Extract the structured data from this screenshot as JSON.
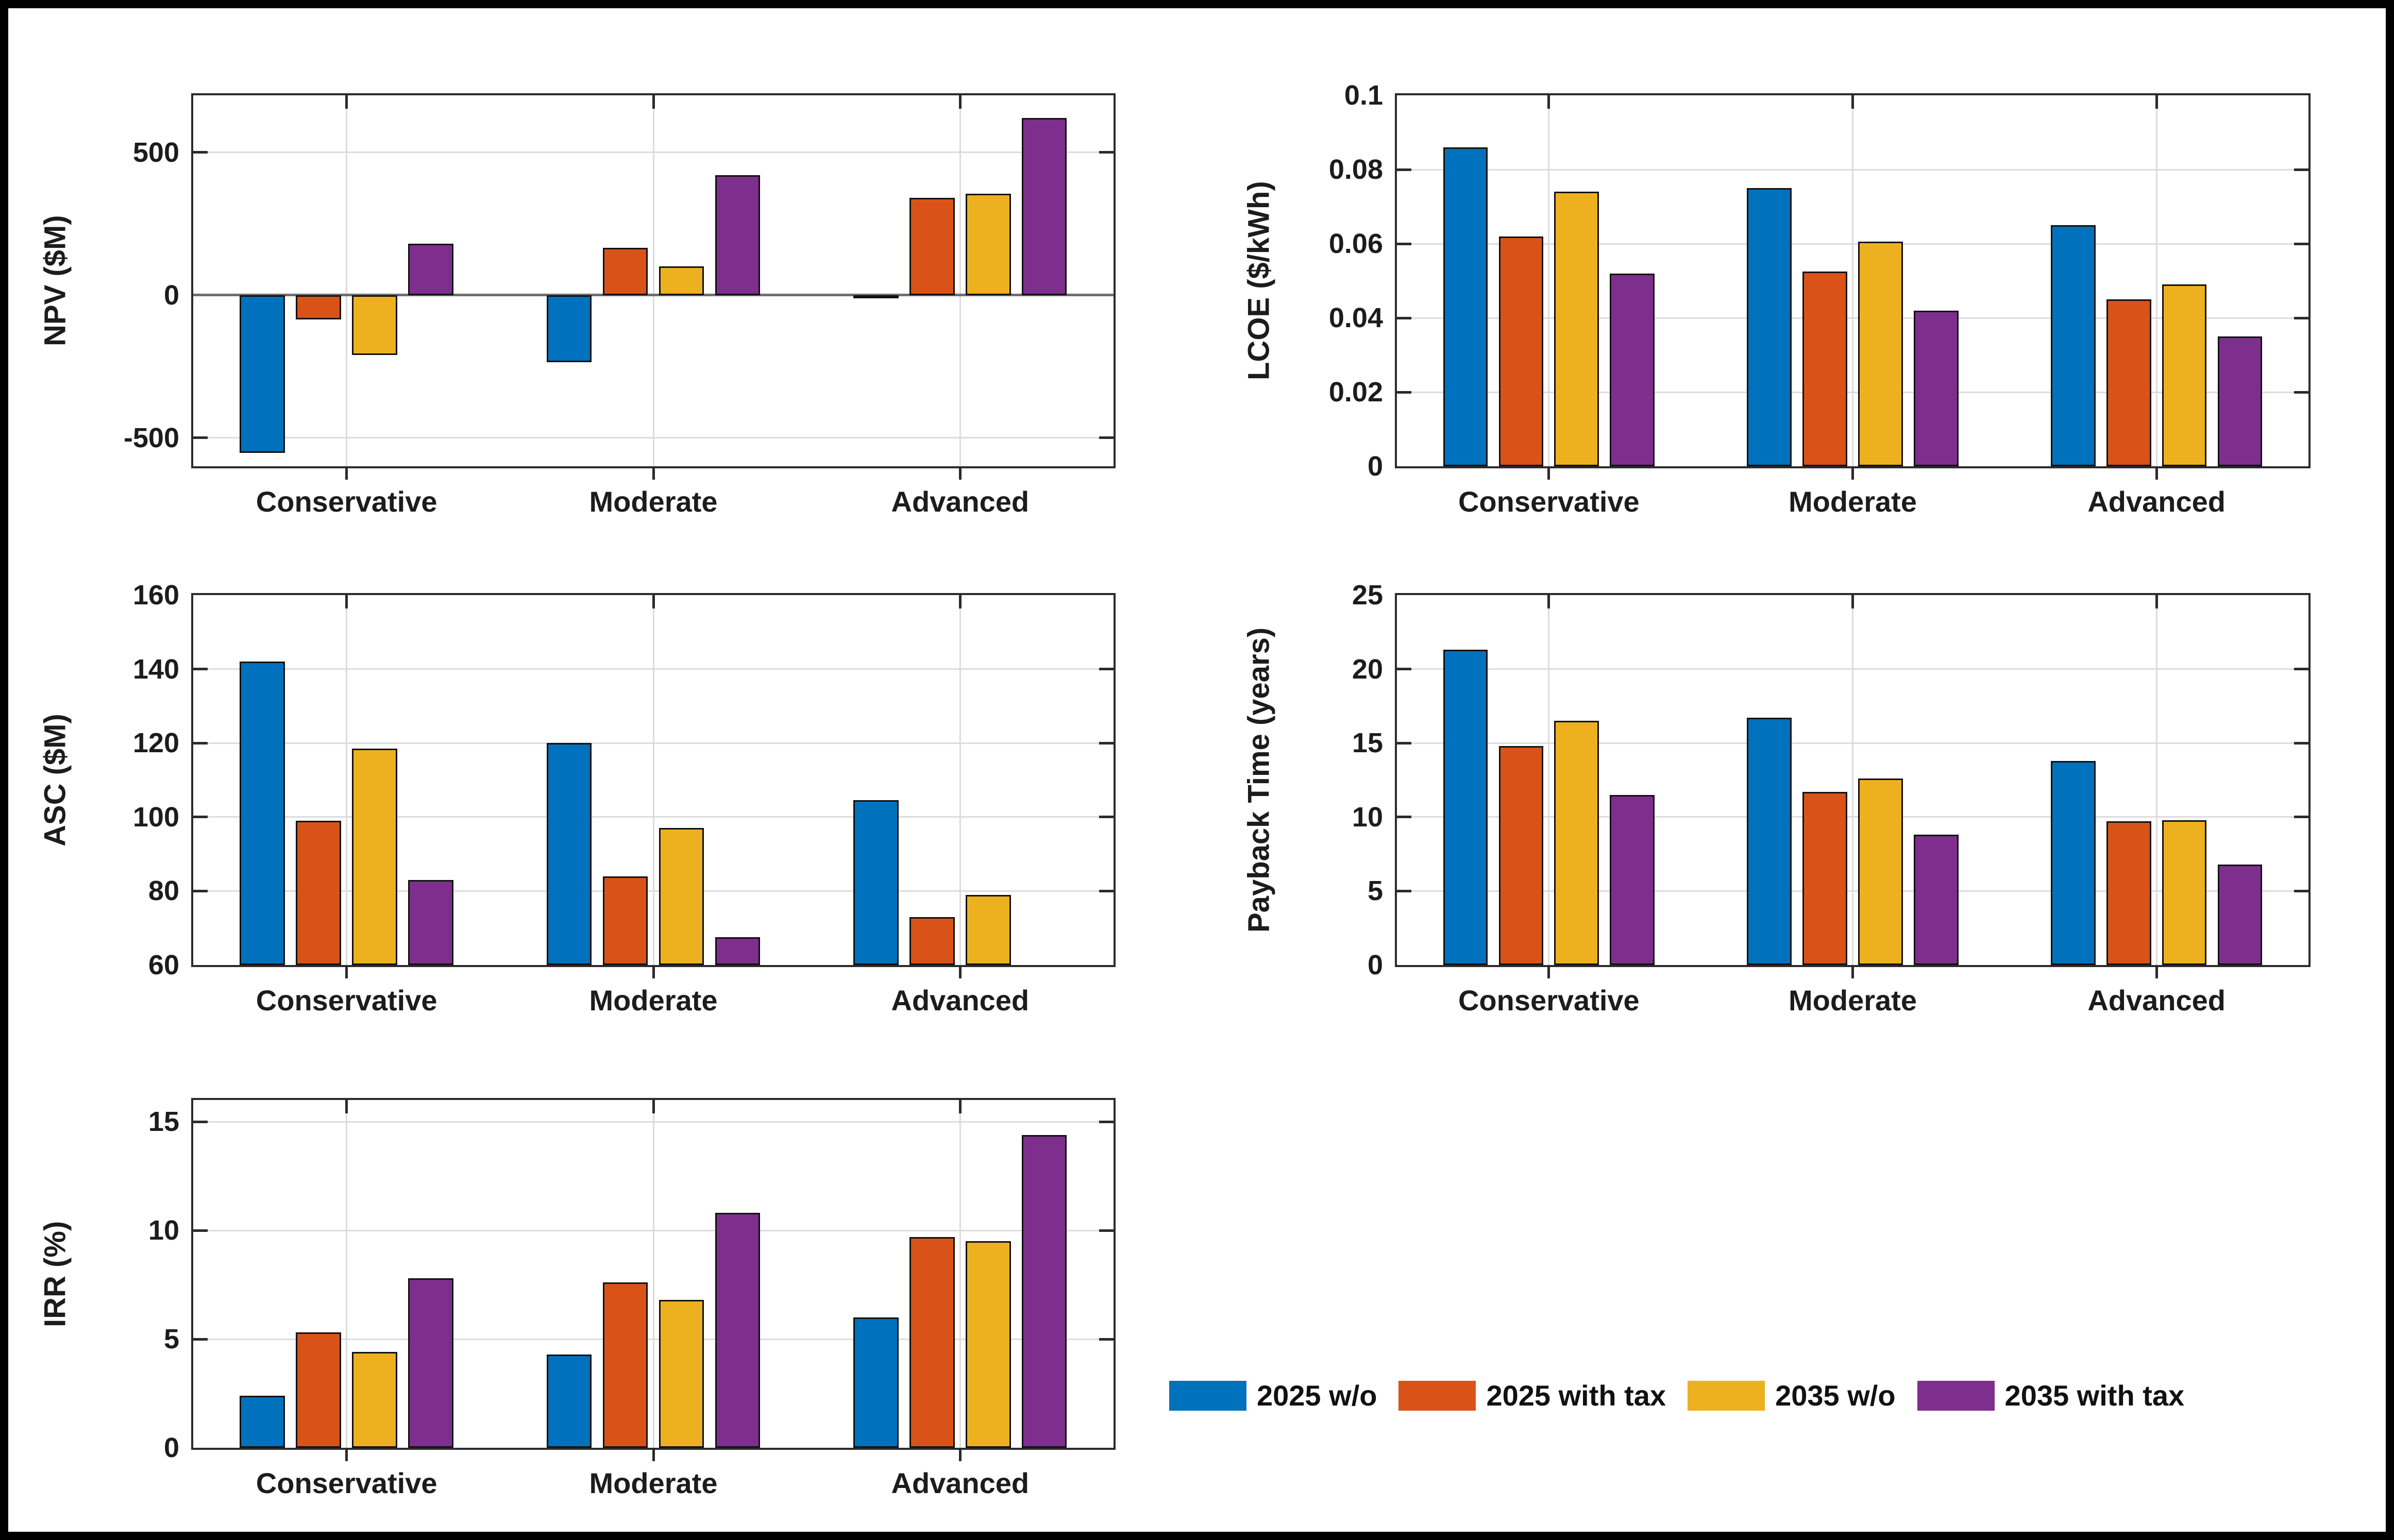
{
  "figure": {
    "background": "#ffffff",
    "frame_color": "#000000"
  },
  "palette": {
    "blue": "#0072BD",
    "orange": "#D95319",
    "yellow": "#EDB120",
    "purple": "#7E2F8E",
    "grid": "#dcdcdc",
    "axis": "#2b2b2b",
    "zero_line": "#6f6f6f",
    "bar_edge": "#111111",
    "text": "#1c1c1c"
  },
  "categories": [
    "Conservative",
    "Moderate",
    "Advanced"
  ],
  "series_names": [
    "2025 w/o",
    "2025 with tax",
    "2035 w/o",
    "2035 with tax"
  ],
  "legend": {
    "position": "bottom-right",
    "items": [
      {
        "label": "2025 w/o",
        "color": "#0072BD"
      },
      {
        "label": "2025 with tax",
        "color": "#D95319"
      },
      {
        "label": "2035 w/o",
        "color": "#EDB120"
      },
      {
        "label": "2035 with tax",
        "color": "#7E2F8E"
      }
    ]
  },
  "chart_data": [
    {
      "id": "npv",
      "type": "bar",
      "position": "top-left",
      "xlabel": "",
      "ylabel": "NPV ($M)",
      "ylim": [
        -600,
        700
      ],
      "yticks": [
        -500,
        0,
        500
      ],
      "ytick_labels": [
        "-500",
        "0",
        "500"
      ],
      "grid": true,
      "baseline": 0,
      "categories": [
        "Conservative",
        "Moderate",
        "Advanced"
      ],
      "series": [
        {
          "name": "2025 w/o",
          "color": "#0072BD",
          "values": [
            -553,
            -235,
            -5
          ]
        },
        {
          "name": "2025 with tax",
          "color": "#D95319",
          "values": [
            -85,
            165,
            340
          ]
        },
        {
          "name": "2035 w/o",
          "color": "#EDB120",
          "values": [
            -210,
            100,
            355
          ]
        },
        {
          "name": "2035 with tax",
          "color": "#7E2F8E",
          "values": [
            180,
            420,
            620
          ]
        }
      ]
    },
    {
      "id": "lcoe",
      "type": "bar",
      "position": "top-right",
      "xlabel": "",
      "ylabel": "LCOE ($/kWh)",
      "ylim": [
        0,
        0.1
      ],
      "yticks": [
        0,
        0.02,
        0.04,
        0.06,
        0.08,
        0.1
      ],
      "ytick_labels": [
        "0",
        "0.02",
        "0.04",
        "0.06",
        "0.08",
        "0.1"
      ],
      "grid": true,
      "baseline": 0,
      "categories": [
        "Conservative",
        "Moderate",
        "Advanced"
      ],
      "series": [
        {
          "name": "2025 w/o",
          "color": "#0072BD",
          "values": [
            0.086,
            0.075,
            0.065
          ]
        },
        {
          "name": "2025 with tax",
          "color": "#D95319",
          "values": [
            0.062,
            0.0525,
            0.045
          ]
        },
        {
          "name": "2035 w/o",
          "color": "#EDB120",
          "values": [
            0.074,
            0.0605,
            0.049
          ]
        },
        {
          "name": "2035 with tax",
          "color": "#7E2F8E",
          "values": [
            0.052,
            0.042,
            0.035
          ]
        }
      ]
    },
    {
      "id": "asc",
      "type": "bar",
      "position": "middle-left",
      "xlabel": "",
      "ylabel": "ASC ($M)",
      "ylim": [
        60,
        160
      ],
      "yticks": [
        60,
        80,
        100,
        120,
        140,
        160
      ],
      "ytick_labels": [
        "60",
        "80",
        "100",
        "120",
        "140",
        "160"
      ],
      "grid": true,
      "baseline": 60,
      "categories": [
        "Conservative",
        "Moderate",
        "Advanced"
      ],
      "series": [
        {
          "name": "2025 w/o",
          "color": "#0072BD",
          "values": [
            142,
            120,
            104.5
          ]
        },
        {
          "name": "2025 with tax",
          "color": "#D95319",
          "values": [
            99,
            84,
            73
          ]
        },
        {
          "name": "2035 w/o",
          "color": "#EDB120",
          "values": [
            118.5,
            97,
            79
          ]
        },
        {
          "name": "2035 with tax",
          "color": "#7E2F8E",
          "values": [
            83,
            67.5,
            null
          ]
        }
      ]
    },
    {
      "id": "payback",
      "type": "bar",
      "position": "middle-right",
      "xlabel": "",
      "ylabel": "Payback Time (years)",
      "ylim": [
        0,
        25
      ],
      "yticks": [
        0,
        5,
        10,
        15,
        20,
        25
      ],
      "ytick_labels": [
        "0",
        "5",
        "10",
        "15",
        "20",
        "25"
      ],
      "grid": true,
      "baseline": 0,
      "categories": [
        "Conservative",
        "Moderate",
        "Advanced"
      ],
      "series": [
        {
          "name": "2025 w/o",
          "color": "#0072BD",
          "values": [
            21.3,
            16.7,
            13.8
          ]
        },
        {
          "name": "2025 with tax",
          "color": "#D95319",
          "values": [
            14.8,
            11.7,
            9.7
          ]
        },
        {
          "name": "2035 w/o",
          "color": "#EDB120",
          "values": [
            16.5,
            12.6,
            9.8
          ]
        },
        {
          "name": "2035 with tax",
          "color": "#7E2F8E",
          "values": [
            11.5,
            8.8,
            6.8
          ]
        }
      ]
    },
    {
      "id": "irr",
      "type": "bar",
      "position": "bottom-left",
      "xlabel": "",
      "ylabel": "IRR (%)",
      "ylim": [
        0,
        16
      ],
      "yticks": [
        0,
        5,
        10,
        15
      ],
      "ytick_labels": [
        "0",
        "5",
        "10",
        "15"
      ],
      "grid": true,
      "baseline": 0,
      "categories": [
        "Conservative",
        "Moderate",
        "Advanced"
      ],
      "series": [
        {
          "name": "2025 w/o",
          "color": "#0072BD",
          "values": [
            2.4,
            4.3,
            6.0
          ]
        },
        {
          "name": "2025 with tax",
          "color": "#D95319",
          "values": [
            5.3,
            7.6,
            9.7
          ]
        },
        {
          "name": "2035 w/o",
          "color": "#EDB120",
          "values": [
            4.4,
            6.8,
            9.5
          ]
        },
        {
          "name": "2035 with tax",
          "color": "#7E2F8E",
          "values": [
            7.8,
            10.8,
            14.4
          ]
        }
      ]
    }
  ]
}
